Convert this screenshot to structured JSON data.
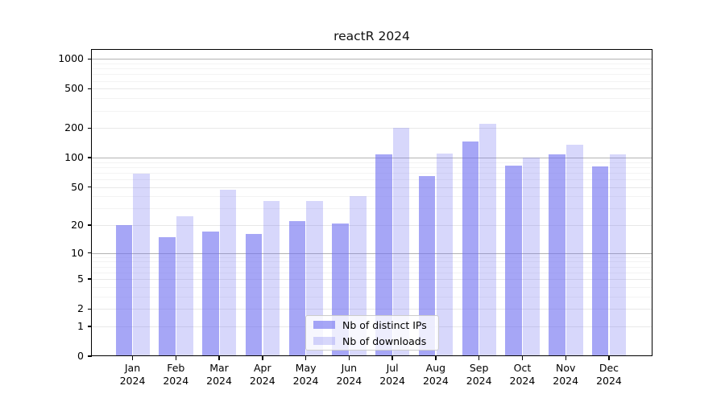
{
  "chart_data": {
    "type": "bar",
    "title": "reactR 2024",
    "categories": [
      "Jan",
      "Feb",
      "Mar",
      "Apr",
      "May",
      "Jun",
      "Jul",
      "Aug",
      "Sep",
      "Oct",
      "Nov",
      "Dec"
    ],
    "year": "2024",
    "series": [
      {
        "name": "Nb of distinct IPs",
        "color": "#7070f0",
        "alpha": 0.62,
        "values": [
          20,
          15,
          17,
          16,
          22,
          21,
          108,
          65,
          145,
          83,
          108,
          82
        ]
      },
      {
        "name": "Nb of downloads",
        "color": "#7070f0",
        "alpha": 0.28,
        "values": [
          68,
          25,
          47,
          36,
          36,
          40,
          200,
          111,
          219,
          100,
          135,
          107
        ]
      }
    ],
    "y_axis": {
      "scale": "log1p",
      "ticks": [
        0,
        1,
        2,
        5,
        10,
        20,
        50,
        100,
        200,
        500,
        1000
      ],
      "major_gridlines": [
        10,
        100,
        1000
      ],
      "minor_gridline_multipliers": [
        3,
        4,
        6,
        7,
        8,
        9
      ],
      "minor_gridline_decades": [
        1,
        10,
        100
      ],
      "range": [
        0,
        1260
      ],
      "grid": true
    },
    "xlabel": "",
    "ylabel": "",
    "legend_position": "lower center"
  },
  "colors": {
    "background": "#ffffff",
    "spine": "#000000",
    "text": "#000000",
    "major_grid": "#b3b3b3",
    "labeled_grid": "#e8e8e8",
    "minor_grid": "#f3f3f3",
    "legend_border": "#cccccc"
  }
}
